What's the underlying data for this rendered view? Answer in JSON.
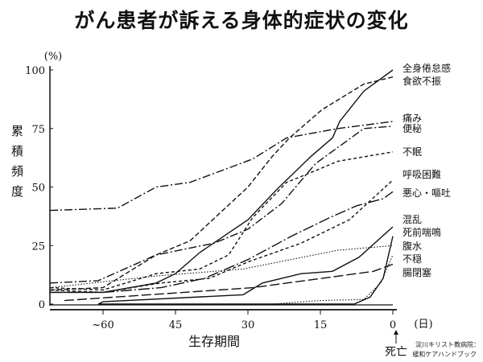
{
  "title": "がん患者が訴える身体的症状の変化",
  "chart_data": {
    "type": "line",
    "title": "がん患者が訴える身体的症状の変化",
    "xlabel": "生存期間",
    "x_unit": "(日)",
    "ylabel": "累積頻度",
    "y_unit": "(%)",
    "x_ticks": [
      60,
      45,
      30,
      15,
      0
    ],
    "x_tick_labels": [
      "~60",
      "45",
      "30",
      "15",
      "0"
    ],
    "y_ticks": [
      0,
      25,
      50,
      75,
      100
    ],
    "xlim": [
      71,
      0
    ],
    "ylim": [
      0,
      100
    ],
    "annotation": "死亡",
    "source": [
      "淀川キリスト教病院：",
      "緩和ケアハンドブック"
    ],
    "series": [
      {
        "name": "全身倦怠感",
        "style": "solid",
        "x": [
          71,
          60,
          49,
          45,
          40,
          30,
          24,
          17,
          12.5,
          11,
          6,
          0
        ],
        "y": [
          5,
          5,
          9,
          13,
          22,
          36,
          49,
          63,
          71,
          78,
          91,
          100
        ]
      },
      {
        "name": "食欲不振",
        "style": "dashed",
        "x": [
          71,
          60,
          49,
          42,
          30,
          25,
          21.4,
          14.7,
          6,
          0
        ],
        "y": [
          6,
          7,
          21,
          27,
          50,
          63,
          71,
          83,
          94,
          97
        ]
      },
      {
        "name": "痛み",
        "style": "dashdot",
        "x": [
          71,
          57,
          49,
          42,
          29,
          22,
          11.4,
          0
        ],
        "y": [
          40,
          41,
          50,
          52,
          62,
          71,
          75,
          78
        ]
      },
      {
        "name": "便秘",
        "style": "dashdot",
        "x": [
          71,
          61,
          49,
          37,
          30,
          23,
          16,
          6,
          0
        ],
        "y": [
          9,
          10,
          21,
          26,
          32,
          43,
          60,
          75,
          76
        ]
      },
      {
        "name": "不眠",
        "style": "shortdash",
        "x": [
          71,
          60,
          49,
          40,
          34,
          29,
          22,
          16,
          11.4,
          0
        ],
        "y": [
          7,
          6,
          13,
          15,
          21,
          37,
          52,
          57,
          61,
          65
        ]
      },
      {
        "name": "呼吸困難",
        "style": "shortdash",
        "x": [
          71,
          60,
          48,
          38,
          30,
          19,
          9,
          0
        ],
        "y": [
          6,
          5,
          9,
          11,
          18,
          26,
          36,
          53
        ]
      },
      {
        "name": "悪心・嘔吐",
        "style": "longdashdot",
        "x": [
          71,
          60,
          48,
          39,
          30,
          21,
          13,
          7.5,
          2,
          0
        ],
        "y": [
          5,
          5,
          7,
          11,
          19,
          29,
          37,
          42,
          45,
          48
        ]
      },
      {
        "name": "混乱",
        "style": "solid",
        "x": [
          61,
          60,
          31,
          27,
          19,
          12.5,
          7,
          0
        ],
        "y": [
          0,
          1,
          4,
          9,
          13,
          14,
          20,
          33
        ]
      },
      {
        "name": "死前喘鳴",
        "style": "solid",
        "x": [
          61,
          8,
          4.7,
          2,
          0
        ],
        "y": [
          0,
          0,
          3,
          11,
          29
        ]
      },
      {
        "name": "腹水",
        "style": "dotted",
        "x": [
          71,
          49,
          31,
          11.4,
          0
        ],
        "y": [
          7,
          12,
          15,
          23,
          25
        ]
      },
      {
        "name": "不穏",
        "style": "dotted",
        "x": [
          25,
          15,
          6,
          2.5,
          0
        ],
        "y": [
          0,
          1.5,
          2,
          9,
          21
        ]
      },
      {
        "name": "腸閉塞",
        "style": "longdash",
        "x": [
          68,
          29,
          4,
          0
        ],
        "y": [
          1.5,
          7,
          14,
          17
        ]
      }
    ]
  }
}
